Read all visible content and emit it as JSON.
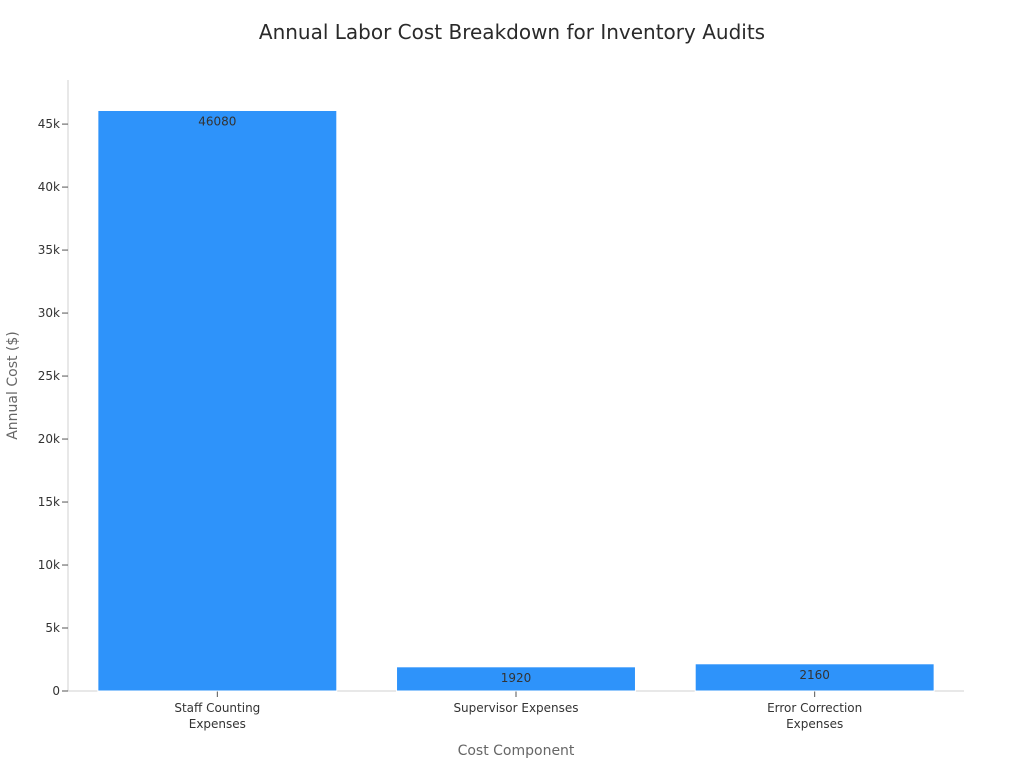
{
  "chart_data": {
    "type": "bar",
    "title": "Annual Labor Cost Breakdown for Inventory Audits",
    "xlabel": "Cost Component",
    "ylabel": "Annual Cost ($)",
    "categories": [
      [
        "Staff Counting",
        "Expenses"
      ],
      [
        "Supervisor Expenses"
      ],
      [
        "Error Correction",
        "Expenses"
      ]
    ],
    "values": [
      46080,
      1920,
      2160
    ],
    "ylim": [
      0,
      48500
    ],
    "yticks": [
      0,
      5000,
      10000,
      15000,
      20000,
      25000,
      30000,
      35000,
      40000,
      45000
    ],
    "ytick_labels": [
      "0",
      "5k",
      "10k",
      "15k",
      "20k",
      "25k",
      "30k",
      "35k",
      "40k",
      "45k"
    ],
    "grid": false,
    "bar_color": "#2e93fa"
  }
}
